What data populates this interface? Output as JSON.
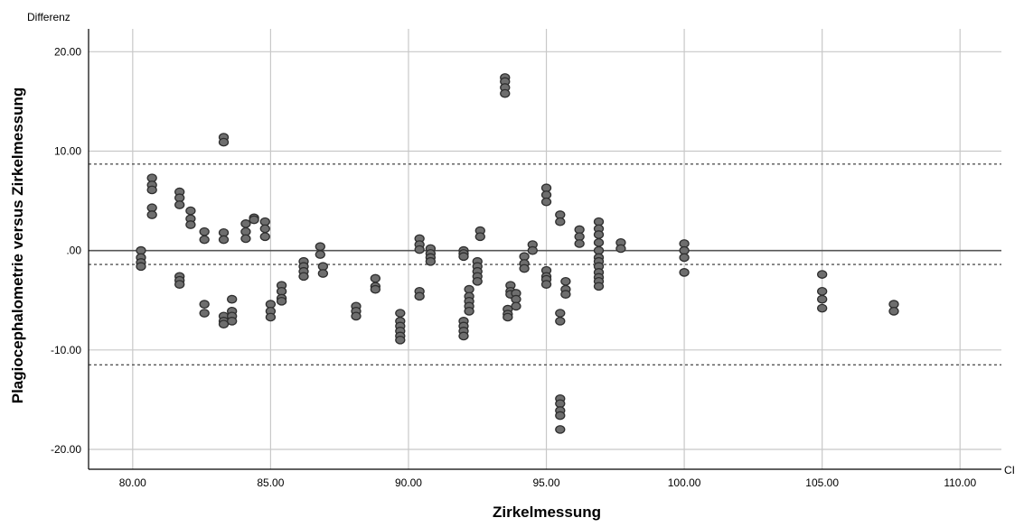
{
  "chart_data": {
    "type": "scatter",
    "title": "",
    "xlabel": "Zirkelmessung",
    "ylabel": "Plagiocephalometrie versus Zirkelmessung",
    "y_corner_label": "Differenz",
    "x_corner_label": "CI",
    "xlim": [
      78.4,
      111.5
    ],
    "ylim": [
      -22.0,
      22.3
    ],
    "x_ticks": [
      80,
      85,
      90,
      95,
      100,
      105,
      110
    ],
    "x_tick_labels": [
      "80.00",
      "85.00",
      "90.00",
      "95.00",
      "100.00",
      "105.00",
      "110.00"
    ],
    "y_ticks": [
      20,
      10,
      0,
      -10,
      -20
    ],
    "y_tick_labels": [
      "20.00",
      "10.00",
      ".00",
      "-10.00",
      "-20.00"
    ],
    "grid": true,
    "mean_line": -1.4,
    "limits_of_agreement": [
      8.7,
      -11.5
    ],
    "zero_line": 0,
    "colors": {
      "point_fill": "#6e6e6e",
      "point_stroke": "#2e2e2e",
      "grid": "#c8c8c8",
      "reference": "#555555"
    },
    "points": [
      {
        "x": 80.3,
        "y": 0.0
      },
      {
        "x": 80.3,
        "y": -0.7
      },
      {
        "x": 80.3,
        "y": -1.2
      },
      {
        "x": 80.3,
        "y": -1.6
      },
      {
        "x": 80.7,
        "y": 7.3
      },
      {
        "x": 80.7,
        "y": 6.6
      },
      {
        "x": 80.7,
        "y": 6.1
      },
      {
        "x": 80.7,
        "y": 4.3
      },
      {
        "x": 80.7,
        "y": 3.6
      },
      {
        "x": 81.7,
        "y": 5.9
      },
      {
        "x": 81.7,
        "y": 5.3
      },
      {
        "x": 81.7,
        "y": 4.6
      },
      {
        "x": 81.7,
        "y": -2.6
      },
      {
        "x": 81.7,
        "y": -3.0
      },
      {
        "x": 81.7,
        "y": -3.4
      },
      {
        "x": 82.1,
        "y": 4.0
      },
      {
        "x": 82.1,
        "y": 3.2
      },
      {
        "x": 82.1,
        "y": 2.6
      },
      {
        "x": 82.6,
        "y": 1.9
      },
      {
        "x": 82.6,
        "y": 1.1
      },
      {
        "x": 82.6,
        "y": -5.4
      },
      {
        "x": 82.6,
        "y": -6.3
      },
      {
        "x": 83.3,
        "y": 11.4
      },
      {
        "x": 83.3,
        "y": 10.9
      },
      {
        "x": 83.3,
        "y": 1.8
      },
      {
        "x": 83.3,
        "y": 1.1
      },
      {
        "x": 83.3,
        "y": -6.6
      },
      {
        "x": 83.3,
        "y": -7.1
      },
      {
        "x": 83.3,
        "y": -7.4
      },
      {
        "x": 83.6,
        "y": -4.9
      },
      {
        "x": 83.6,
        "y": -6.1
      },
      {
        "x": 83.6,
        "y": -6.6
      },
      {
        "x": 83.6,
        "y": -7.1
      },
      {
        "x": 84.1,
        "y": 2.7
      },
      {
        "x": 84.1,
        "y": 1.9
      },
      {
        "x": 84.1,
        "y": 1.2
      },
      {
        "x": 84.4,
        "y": 3.3
      },
      {
        "x": 84.4,
        "y": 3.1
      },
      {
        "x": 84.8,
        "y": 2.9
      },
      {
        "x": 84.8,
        "y": 2.2
      },
      {
        "x": 84.8,
        "y": 1.4
      },
      {
        "x": 85.0,
        "y": -5.4
      },
      {
        "x": 85.0,
        "y": -6.1
      },
      {
        "x": 85.0,
        "y": -6.7
      },
      {
        "x": 85.4,
        "y": -3.5
      },
      {
        "x": 85.4,
        "y": -4.1
      },
      {
        "x": 85.4,
        "y": -4.8
      },
      {
        "x": 85.4,
        "y": -5.1
      },
      {
        "x": 86.2,
        "y": -1.1
      },
      {
        "x": 86.2,
        "y": -1.6
      },
      {
        "x": 86.2,
        "y": -2.1
      },
      {
        "x": 86.2,
        "y": -2.6
      },
      {
        "x": 86.8,
        "y": 0.4
      },
      {
        "x": 86.8,
        "y": -0.4
      },
      {
        "x": 86.9,
        "y": -1.6
      },
      {
        "x": 86.9,
        "y": -2.3
      },
      {
        "x": 88.1,
        "y": -5.6
      },
      {
        "x": 88.1,
        "y": -6.1
      },
      {
        "x": 88.1,
        "y": -6.6
      },
      {
        "x": 88.8,
        "y": -2.8
      },
      {
        "x": 88.8,
        "y": -3.6
      },
      {
        "x": 88.8,
        "y": -3.9
      },
      {
        "x": 89.7,
        "y": -6.3
      },
      {
        "x": 89.7,
        "y": -7.1
      },
      {
        "x": 89.7,
        "y": -7.6
      },
      {
        "x": 89.7,
        "y": -8.1
      },
      {
        "x": 89.7,
        "y": -8.6
      },
      {
        "x": 89.7,
        "y": -9.0
      },
      {
        "x": 90.4,
        "y": 1.2
      },
      {
        "x": 90.4,
        "y": 0.6
      },
      {
        "x": 90.4,
        "y": 0.1
      },
      {
        "x": 90.4,
        "y": -4.1
      },
      {
        "x": 90.4,
        "y": -4.6
      },
      {
        "x": 90.8,
        "y": 0.2
      },
      {
        "x": 90.8,
        "y": -0.3
      },
      {
        "x": 90.8,
        "y": -0.7
      },
      {
        "x": 90.8,
        "y": -1.1
      },
      {
        "x": 92.0,
        "y": 0.0
      },
      {
        "x": 92.0,
        "y": -0.3
      },
      {
        "x": 92.0,
        "y": -0.6
      },
      {
        "x": 92.0,
        "y": -7.1
      },
      {
        "x": 92.0,
        "y": -7.6
      },
      {
        "x": 92.0,
        "y": -8.1
      },
      {
        "x": 92.0,
        "y": -8.6
      },
      {
        "x": 92.2,
        "y": -3.9
      },
      {
        "x": 92.2,
        "y": -4.6
      },
      {
        "x": 92.2,
        "y": -5.1
      },
      {
        "x": 92.2,
        "y": -5.6
      },
      {
        "x": 92.2,
        "y": -6.1
      },
      {
        "x": 92.5,
        "y": -1.1
      },
      {
        "x": 92.5,
        "y": -1.6
      },
      {
        "x": 92.5,
        "y": -2.1
      },
      {
        "x": 92.5,
        "y": -2.6
      },
      {
        "x": 92.5,
        "y": -3.1
      },
      {
        "x": 92.6,
        "y": 2.0
      },
      {
        "x": 92.6,
        "y": 1.4
      },
      {
        "x": 93.5,
        "y": 17.4
      },
      {
        "x": 93.5,
        "y": 17.0
      },
      {
        "x": 93.5,
        "y": 16.4
      },
      {
        "x": 93.5,
        "y": 15.8
      },
      {
        "x": 93.6,
        "y": -5.9
      },
      {
        "x": 93.6,
        "y": -6.4
      },
      {
        "x": 93.6,
        "y": -6.7
      },
      {
        "x": 93.7,
        "y": -3.5
      },
      {
        "x": 93.7,
        "y": -4.1
      },
      {
        "x": 93.7,
        "y": -4.4
      },
      {
        "x": 93.9,
        "y": -4.3
      },
      {
        "x": 93.9,
        "y": -4.9
      },
      {
        "x": 93.9,
        "y": -5.6
      },
      {
        "x": 94.2,
        "y": -0.6
      },
      {
        "x": 94.2,
        "y": -1.3
      },
      {
        "x": 94.2,
        "y": -1.8
      },
      {
        "x": 94.5,
        "y": 0.6
      },
      {
        "x": 94.5,
        "y": 0.0
      },
      {
        "x": 95.0,
        "y": 6.3
      },
      {
        "x": 95.0,
        "y": 5.6
      },
      {
        "x": 95.0,
        "y": 4.9
      },
      {
        "x": 95.0,
        "y": -2.0
      },
      {
        "x": 95.0,
        "y": -2.6
      },
      {
        "x": 95.0,
        "y": -2.9
      },
      {
        "x": 95.0,
        "y": -3.4
      },
      {
        "x": 95.5,
        "y": 3.6
      },
      {
        "x": 95.5,
        "y": 2.9
      },
      {
        "x": 95.5,
        "y": -6.3
      },
      {
        "x": 95.5,
        "y": -7.1
      },
      {
        "x": 95.5,
        "y": -14.9
      },
      {
        "x": 95.5,
        "y": -15.4
      },
      {
        "x": 95.5,
        "y": -16.1
      },
      {
        "x": 95.5,
        "y": -16.6
      },
      {
        "x": 95.5,
        "y": -18.0
      },
      {
        "x": 95.7,
        "y": -3.1
      },
      {
        "x": 95.7,
        "y": -3.9
      },
      {
        "x": 95.7,
        "y": -4.4
      },
      {
        "x": 96.2,
        "y": 2.1
      },
      {
        "x": 96.2,
        "y": 1.4
      },
      {
        "x": 96.2,
        "y": 0.7
      },
      {
        "x": 96.9,
        "y": 2.9
      },
      {
        "x": 96.9,
        "y": 2.2
      },
      {
        "x": 96.9,
        "y": 1.6
      },
      {
        "x": 96.9,
        "y": 0.8
      },
      {
        "x": 96.9,
        "y": 0.0
      },
      {
        "x": 96.9,
        "y": -0.7
      },
      {
        "x": 96.9,
        "y": -1.1
      },
      {
        "x": 96.9,
        "y": -1.6
      },
      {
        "x": 96.9,
        "y": -2.2
      },
      {
        "x": 96.9,
        "y": -2.7
      },
      {
        "x": 96.9,
        "y": -3.1
      },
      {
        "x": 96.9,
        "y": -3.6
      },
      {
        "x": 97.7,
        "y": 0.8
      },
      {
        "x": 97.7,
        "y": 0.2
      },
      {
        "x": 100.0,
        "y": 0.7
      },
      {
        "x": 100.0,
        "y": 0.0
      },
      {
        "x": 100.0,
        "y": -0.7
      },
      {
        "x": 100.0,
        "y": -2.2
      },
      {
        "x": 105.0,
        "y": -2.4
      },
      {
        "x": 105.0,
        "y": -4.1
      },
      {
        "x": 105.0,
        "y": -4.9
      },
      {
        "x": 105.0,
        "y": -5.8
      },
      {
        "x": 107.6,
        "y": -5.4
      },
      {
        "x": 107.6,
        "y": -6.1
      }
    ]
  }
}
